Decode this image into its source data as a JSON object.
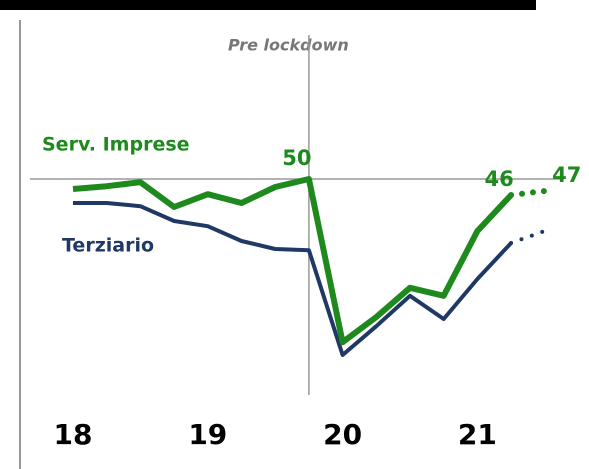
{
  "chart_data": {
    "type": "line",
    "annotation": "Pre lockdown",
    "lockdown_index": 7,
    "categories": [
      "18",
      null,
      null,
      null,
      "19",
      null,
      null,
      null,
      "20",
      null,
      null,
      null,
      "21",
      null,
      null
    ],
    "ylim": [
      -4,
      86
    ],
    "series": [
      {
        "name": "Serv. Imprese",
        "color": "#1e8a1e",
        "width": 6,
        "values": [
          47.5,
          48.2,
          49.2,
          43,
          46.2,
          44,
          48,
          50,
          9.2,
          15.5,
          22.8,
          20.8,
          37,
          46,
          47
        ],
        "dotted_after": 13,
        "labeled_points": [
          7,
          13,
          14
        ]
      },
      {
        "name": "Terziario",
        "color": "#1f3864",
        "width": 4,
        "values": [
          44,
          44,
          43.2,
          39.5,
          38.2,
          34.5,
          32.5,
          32.2,
          6,
          13.2,
          20.8,
          15,
          25,
          34,
          37
        ],
        "dotted_after": 13,
        "labeled_points": []
      }
    ],
    "reference_line": 50
  }
}
